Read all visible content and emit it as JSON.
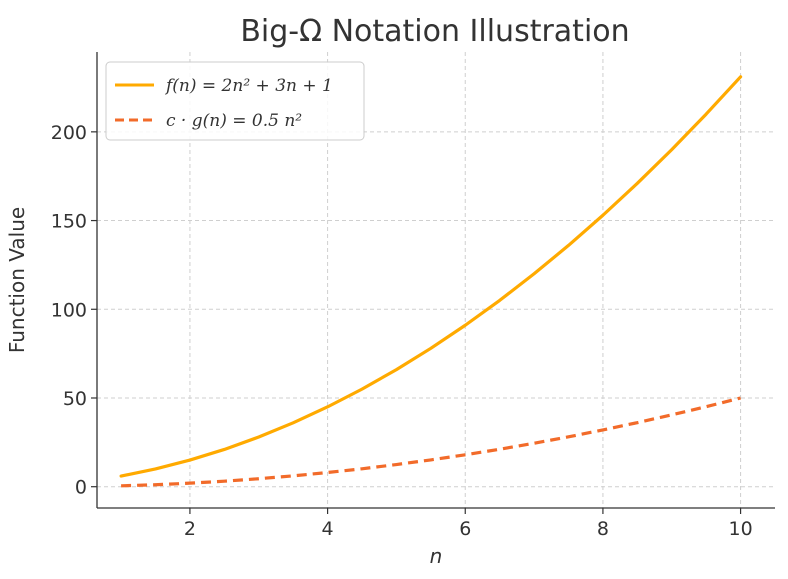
{
  "chart_data": {
    "type": "line",
    "title": "Big-Ω Notation Illustration",
    "xlabel": "n",
    "ylabel": "Function Value",
    "xlim": [
      0.65,
      10.5
    ],
    "ylim": [
      -12,
      245
    ],
    "xticks": [
      2,
      4,
      6,
      8,
      10
    ],
    "yticks": [
      0,
      50,
      100,
      150,
      200
    ],
    "grid": true,
    "legend_position": "top-left",
    "series": [
      {
        "name": "f(n) = 2n² + 3n + 1",
        "color": "#FFAA00",
        "style": "solid",
        "x": [
          1,
          1.5,
          2,
          2.5,
          3,
          3.5,
          4,
          4.5,
          5,
          5.5,
          6,
          6.5,
          7,
          7.5,
          8,
          8.5,
          9,
          9.5,
          10
        ],
        "y": [
          6,
          10,
          15,
          21,
          28,
          36,
          45,
          55,
          66,
          78,
          91,
          105,
          120,
          136,
          153,
          171,
          190,
          210,
          231
        ]
      },
      {
        "name": "c · g(n) = 0.5 n²",
        "color": "#F26B2A",
        "style": "dashed",
        "x": [
          1,
          1.5,
          2,
          2.5,
          3,
          3.5,
          4,
          4.5,
          5,
          5.5,
          6,
          6.5,
          7,
          7.5,
          8,
          8.5,
          9,
          9.5,
          10
        ],
        "y": [
          0.5,
          1.1,
          2,
          3.1,
          4.5,
          6.1,
          8,
          10.1,
          12.5,
          15.1,
          18,
          21.1,
          24.5,
          28.1,
          32,
          36.1,
          40.5,
          45.1,
          50
        ]
      }
    ]
  }
}
